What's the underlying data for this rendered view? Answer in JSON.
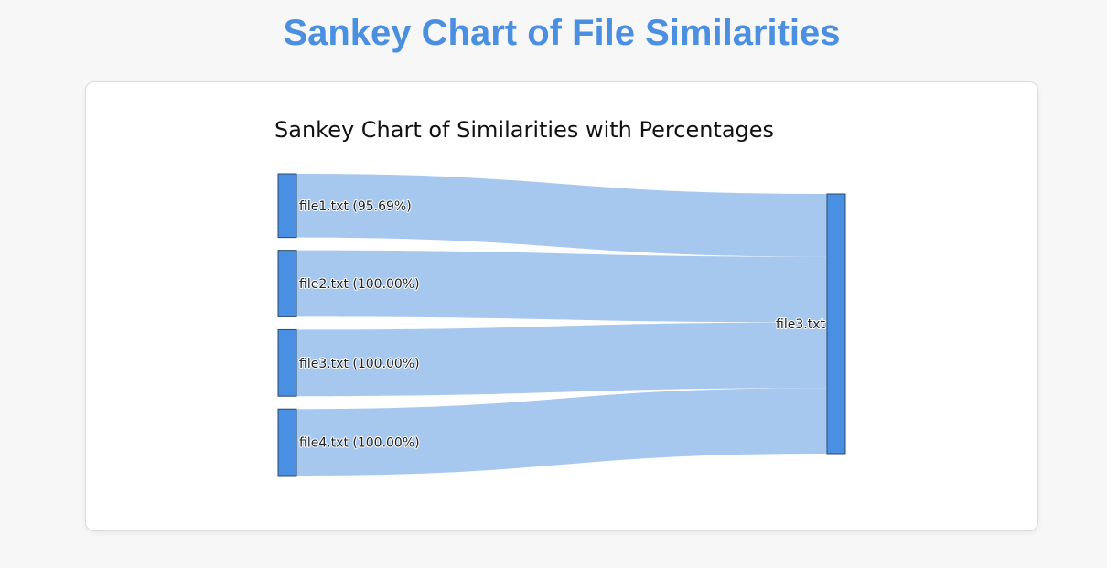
{
  "page": {
    "title": "Sankey Chart of File Similarities",
    "title_color": "#4a8fe0",
    "background": "#f7f7f7"
  },
  "colors": {
    "node_fill": "#4a90e2",
    "node_stroke": "#2b4a6f",
    "link_fill": "#a6c8ef"
  },
  "chart_data": {
    "type": "sankey",
    "title": "Sankey Chart of Similarities with Percentages",
    "nodes": [
      {
        "id": "file1",
        "label": "file1.txt (95.69%)",
        "column": 0
      },
      {
        "id": "file2",
        "label": "file2.txt (100.00%)",
        "column": 0
      },
      {
        "id": "file3_src",
        "label": "file3.txt (100.00%)",
        "column": 0
      },
      {
        "id": "file4",
        "label": "file4.txt (100.00%)",
        "column": 0
      },
      {
        "id": "file3_tgt",
        "label": "file3.txt",
        "column": 1
      }
    ],
    "links": [
      {
        "source": "file1",
        "target": "file3_tgt",
        "value": 95.69
      },
      {
        "source": "file2",
        "target": "file3_tgt",
        "value": 100.0
      },
      {
        "source": "file3_src",
        "target": "file3_tgt",
        "value": 100.0
      },
      {
        "source": "file4",
        "target": "file3_tgt",
        "value": 100.0
      }
    ]
  }
}
